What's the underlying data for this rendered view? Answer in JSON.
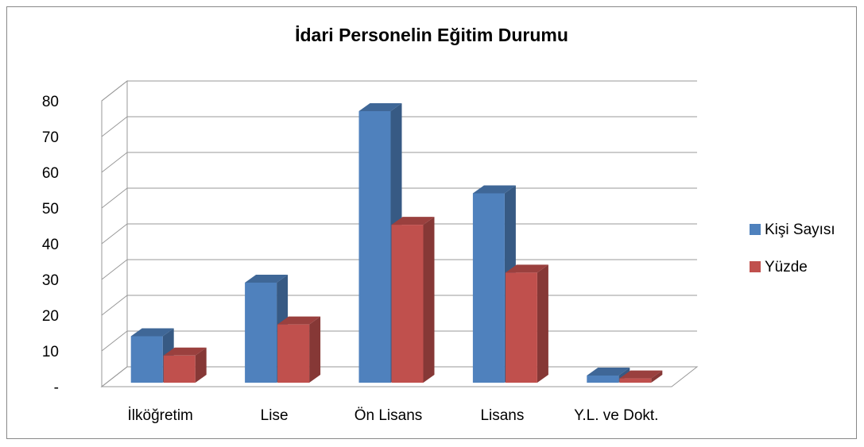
{
  "chart_data": {
    "type": "bar3d",
    "title": "İdari Personelin Eğitim Durumu",
    "categories": [
      "İlköğretim",
      "Lise",
      "Ön Lisans",
      "Lisans",
      "Y.L. ve Dokt."
    ],
    "series": [
      {
        "name": "Kişi Sayısı",
        "color": "#4f81bd",
        "values": [
          13,
          28,
          76,
          53,
          2
        ]
      },
      {
        "name": "Yüzde",
        "color": "#c0504d",
        "values": [
          7.6,
          16.3,
          44.2,
          30.8,
          1.2
        ]
      }
    ],
    "ylim": [
      0,
      80
    ],
    "yticks": [
      {
        "value": 0,
        "label": "-"
      },
      10,
      20,
      30,
      40,
      50,
      60,
      70,
      80
    ],
    "grid": true,
    "legend": "right"
  }
}
